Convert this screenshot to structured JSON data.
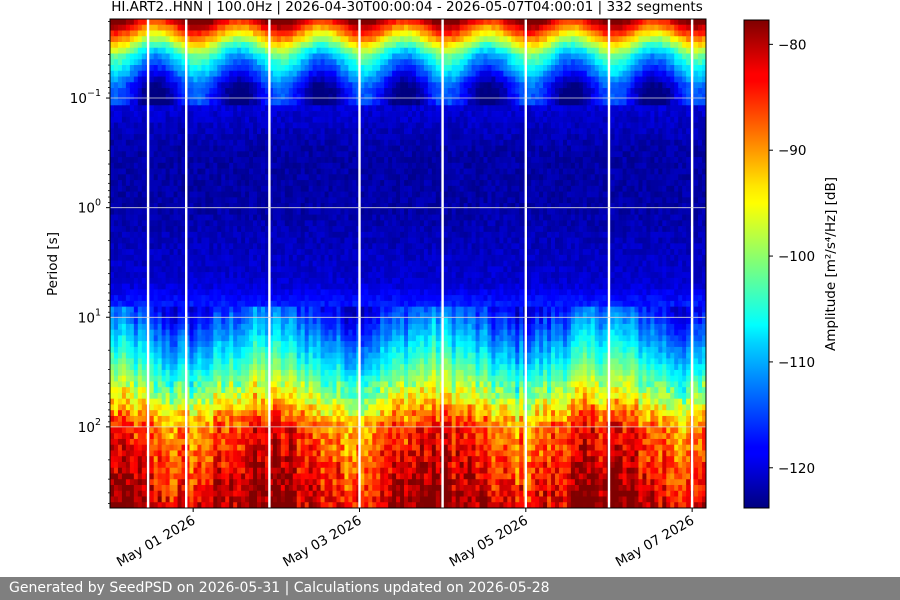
{
  "footer": {
    "text": "Generated by SeedPSD on 2026-05-31 | Calculations updated on 2026-05-28"
  },
  "chart_data": {
    "type": "heatmap",
    "title": "HI.ART2..HNN | 100.0Hz | 2026-04-30T00:00:04 - 2026-05-07T04:00:01 | 332 segments",
    "xlabel": "",
    "ylabel": "Period [s]",
    "colorbar_label": "Amplitude [m²/s⁴/Hz] [dB]",
    "colormap": "jet",
    "y_scale": "log",
    "y_inverted": true,
    "xlim": [
      "2026-04-30T00:00:04",
      "2026-05-07T04:00:01"
    ],
    "ylim": [
      0.019,
      550
    ],
    "clim": [
      -123.8,
      -77.7
    ],
    "segments": 332,
    "x_ticks": [
      "May 01 2026",
      "May 03 2026",
      "May 05 2026",
      "May 07 2026"
    ],
    "x_tick_dates": [
      "2026-05-01T00:00:00",
      "2026-05-03T00:00:00",
      "2026-05-05T00:00:00",
      "2026-05-07T00:00:00"
    ],
    "y_ticks": [
      {
        "value": 0.1,
        "base": "10",
        "exp": "−1"
      },
      {
        "value": 1,
        "base": "10",
        "exp": "0"
      },
      {
        "value": 10,
        "base": "10",
        "exp": "1"
      },
      {
        "value": 100,
        "base": "10",
        "exp": "2"
      }
    ],
    "colorbar_ticks": [
      -80,
      -90,
      -100,
      -110,
      -120
    ],
    "grid": true,
    "data_gaps": [
      "2026-04-30T11:00:00",
      "2026-04-30T22:00:00",
      "2026-05-01T22:00:00",
      "2026-05-03T00:00:00",
      "2026-05-04T00:00:00",
      "2026-05-05T00:00:00",
      "2026-05-06T00:00:00",
      "2026-05-07T00:00:00"
    ],
    "period_profile_db": [
      {
        "period": 0.02,
        "db": -81
      },
      {
        "period": 0.04,
        "db": -106
      },
      {
        "period": 0.08,
        "db": -119
      },
      {
        "period": 0.3,
        "db": -122
      },
      {
        "period": 1,
        "db": -122
      },
      {
        "period": 5,
        "db": -120
      },
      {
        "period": 10,
        "db": -115
      },
      {
        "period": 25,
        "db": -106
      },
      {
        "period": 50,
        "db": -98
      },
      {
        "period": 100,
        "db": -87
      },
      {
        "period": 550,
        "db": -80
      }
    ]
  }
}
